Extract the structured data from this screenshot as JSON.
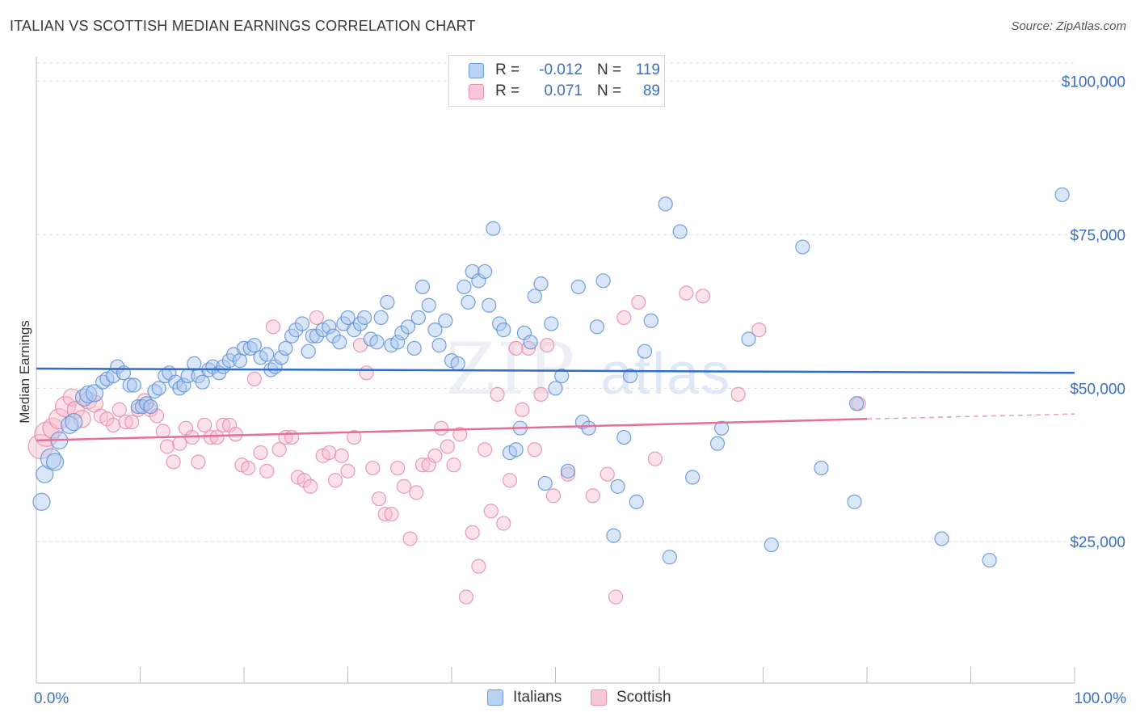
{
  "header": {
    "title": "ITALIAN VS SCOTTISH MEDIAN EARNINGS CORRELATION CHART",
    "source": "Source: ZipAtlas.com"
  },
  "legend_top": {
    "rows": [
      {
        "r_label": "R =",
        "r_value": "-0.012",
        "n_label": "N =",
        "n_value": "119"
      },
      {
        "r_label": "R =",
        "r_value": "0.071",
        "n_label": "N =",
        "n_value": "89"
      }
    ]
  },
  "legend_bottom": {
    "items": [
      "Italians",
      "Scottish"
    ]
  },
  "watermark": {
    "left": "ZIP",
    "right": "atlas"
  },
  "colors": {
    "italians_fill": "#aac8f0",
    "italians_stroke": "#5d8fd6",
    "italians_line": "#2e6dcc",
    "scottish_fill": "#f6bccd",
    "scottish_stroke": "#e88aa8",
    "scottish_line": "#e46f98",
    "tick_label": "#3b6fc4",
    "grid": "#dcdcdc"
  },
  "chart_data": {
    "type": "scatter",
    "title": "ITALIAN VS SCOTTISH MEDIAN EARNINGS CORRELATION CHART",
    "xlabel": "",
    "ylabel": "Median Earnings",
    "xlim": [
      0,
      100
    ],
    "ylim": [
      2000,
      104000
    ],
    "x_tick_labels": [
      "0.0%",
      "100.0%"
    ],
    "y_ticks": [
      25000,
      50000,
      75000,
      100000
    ],
    "y_tick_labels": [
      "$25,000",
      "$50,000",
      "$75,000",
      "$100,000"
    ],
    "grid": true,
    "legend": "top-center",
    "series": [
      {
        "name": "Italians",
        "r": -0.012,
        "n": 119,
        "trend": {
          "x": [
            0,
            100
          ],
          "y": [
            53200,
            52500
          ]
        },
        "points": [
          [
            0.5,
            31500,
            2
          ],
          [
            0.8,
            36000,
            2
          ],
          [
            1.4,
            38500,
            3
          ],
          [
            1.8,
            38000,
            2
          ],
          [
            2.2,
            41500,
            2
          ],
          [
            3.2,
            44000,
            2
          ],
          [
            3.6,
            44500,
            2
          ],
          [
            4.6,
            48500,
            2
          ],
          [
            5.0,
            49000,
            2
          ],
          [
            5.6,
            49200,
            2
          ],
          [
            6.4,
            51000,
            1
          ],
          [
            6.8,
            51500,
            1
          ],
          [
            7.4,
            52000,
            1
          ],
          [
            7.8,
            53500,
            1
          ],
          [
            8.4,
            52500,
            1
          ],
          [
            9.0,
            50500,
            1
          ],
          [
            9.4,
            50500,
            1
          ],
          [
            9.8,
            47000,
            1
          ],
          [
            10.2,
            47000,
            1
          ],
          [
            10.6,
            47500,
            1
          ],
          [
            11.0,
            47000,
            1
          ],
          [
            11.4,
            49500,
            1
          ],
          [
            11.8,
            50000,
            1
          ],
          [
            12.4,
            52000,
            1
          ],
          [
            12.8,
            52500,
            1
          ],
          [
            13.4,
            51000,
            1
          ],
          [
            13.8,
            50000,
            1
          ],
          [
            14.2,
            50500,
            1
          ],
          [
            14.6,
            52000,
            1
          ],
          [
            15.2,
            54000,
            1
          ],
          [
            15.6,
            52000,
            1
          ],
          [
            16.0,
            51000,
            1
          ],
          [
            16.6,
            53000,
            1
          ],
          [
            17.0,
            53500,
            1
          ],
          [
            17.6,
            52500,
            1
          ],
          [
            18.0,
            53500,
            1
          ],
          [
            18.6,
            54500,
            1
          ],
          [
            19.0,
            55500,
            1
          ],
          [
            19.6,
            54500,
            1
          ],
          [
            20.0,
            56500,
            1
          ],
          [
            20.6,
            56500,
            1
          ],
          [
            21.0,
            57000,
            1
          ],
          [
            21.6,
            55000,
            1
          ],
          [
            22.2,
            55500,
            1
          ],
          [
            22.6,
            53000,
            1
          ],
          [
            23.0,
            53500,
            1
          ],
          [
            23.6,
            55000,
            1
          ],
          [
            24.0,
            56500,
            1
          ],
          [
            24.6,
            58500,
            1
          ],
          [
            25.0,
            59500,
            1
          ],
          [
            25.6,
            60500,
            1
          ],
          [
            26.2,
            56000,
            1
          ],
          [
            26.6,
            58500,
            1
          ],
          [
            27.0,
            58500,
            1
          ],
          [
            27.6,
            59500,
            1
          ],
          [
            28.2,
            60000,
            1
          ],
          [
            28.6,
            58500,
            1
          ],
          [
            29.2,
            57500,
            1
          ],
          [
            29.6,
            60500,
            1
          ],
          [
            30.0,
            61500,
            1
          ],
          [
            30.6,
            59500,
            1
          ],
          [
            31.2,
            60500,
            1
          ],
          [
            31.6,
            61500,
            1
          ],
          [
            32.2,
            58000,
            1
          ],
          [
            32.8,
            57500,
            1
          ],
          [
            33.2,
            61500,
            1
          ],
          [
            33.8,
            64000,
            1
          ],
          [
            34.2,
            57000,
            1
          ],
          [
            34.8,
            57500,
            1
          ],
          [
            35.2,
            59000,
            1
          ],
          [
            35.8,
            60000,
            1
          ],
          [
            36.4,
            56500,
            1
          ],
          [
            36.8,
            61500,
            1
          ],
          [
            37.2,
            66500,
            1
          ],
          [
            37.8,
            63500,
            1
          ],
          [
            38.4,
            59500,
            1
          ],
          [
            38.8,
            57000,
            1
          ],
          [
            39.4,
            61000,
            1
          ],
          [
            40.0,
            54500,
            1
          ],
          [
            40.6,
            54000,
            1
          ],
          [
            41.2,
            66500,
            1
          ],
          [
            41.6,
            64000,
            1
          ],
          [
            42.0,
            69000,
            1
          ],
          [
            42.6,
            67500,
            1
          ],
          [
            43.2,
            69000,
            1
          ],
          [
            43.6,
            63500,
            1
          ],
          [
            44.0,
            76000,
            1
          ],
          [
            44.6,
            60500,
            1
          ],
          [
            45.0,
            59500,
            1
          ],
          [
            45.6,
            39500,
            1
          ],
          [
            46.2,
            40000,
            1
          ],
          [
            46.6,
            43500,
            1
          ],
          [
            47.0,
            59000,
            1
          ],
          [
            47.6,
            57500,
            1
          ],
          [
            48.0,
            65000,
            1
          ],
          [
            48.6,
            67000,
            1
          ],
          [
            49.0,
            34500,
            1
          ],
          [
            49.6,
            60500,
            1
          ],
          [
            50.0,
            50000,
            1
          ],
          [
            50.6,
            52000,
            1
          ],
          [
            51.2,
            36500,
            1
          ],
          [
            52.2,
            66500,
            1
          ],
          [
            52.6,
            44500,
            1
          ],
          [
            53.2,
            43500,
            1
          ],
          [
            54.0,
            60000,
            1
          ],
          [
            54.6,
            67500,
            1
          ],
          [
            55.6,
            26000,
            1
          ],
          [
            56.0,
            34000,
            1
          ],
          [
            56.6,
            42000,
            1
          ],
          [
            57.2,
            52000,
            1
          ],
          [
            57.8,
            31500,
            1
          ],
          [
            58.6,
            56000,
            1
          ],
          [
            59.2,
            61000,
            1
          ],
          [
            60.6,
            80000,
            1
          ],
          [
            61.0,
            22500,
            1
          ],
          [
            62.0,
            75500,
            1
          ],
          [
            63.2,
            35500,
            1
          ],
          [
            65.6,
            41000,
            1
          ],
          [
            66.0,
            43500,
            1
          ],
          [
            68.6,
            58000,
            1
          ],
          [
            70.8,
            24500,
            1
          ],
          [
            73.8,
            73000,
            1
          ],
          [
            75.6,
            37000,
            1
          ],
          [
            78.8,
            31500,
            1
          ],
          [
            79.0,
            47500,
            1
          ],
          [
            87.2,
            25500,
            1
          ],
          [
            91.8,
            22000,
            1
          ],
          [
            98.8,
            81500,
            1
          ]
        ]
      },
      {
        "name": "Scottish",
        "r": 0.071,
        "n": 89,
        "trend": {
          "x": [
            0,
            80
          ],
          "y": [
            41500,
            45000
          ],
          "dashed_extension_to": [
            100,
            45800
          ]
        },
        "points": [
          [
            0.4,
            40500,
            4
          ],
          [
            1.0,
            42500,
            4
          ],
          [
            1.6,
            43500,
            3
          ],
          [
            2.2,
            45000,
            3
          ],
          [
            2.8,
            47000,
            3
          ],
          [
            3.4,
            48500,
            2
          ],
          [
            3.8,
            46500,
            2
          ],
          [
            4.4,
            45000,
            2
          ],
          [
            5.0,
            48000,
            2
          ],
          [
            5.6,
            47500,
            2
          ],
          [
            6.2,
            45500,
            1
          ],
          [
            6.8,
            45000,
            1
          ],
          [
            7.4,
            44000,
            1
          ],
          [
            8.0,
            46500,
            1
          ],
          [
            8.6,
            44500,
            1
          ],
          [
            9.2,
            44500,
            1
          ],
          [
            9.8,
            46500,
            1
          ],
          [
            10.4,
            48000,
            1
          ],
          [
            11.0,
            46500,
            1
          ],
          [
            11.6,
            45500,
            1
          ],
          [
            12.2,
            43000,
            1
          ],
          [
            12.6,
            40500,
            1
          ],
          [
            13.2,
            38000,
            1
          ],
          [
            13.8,
            41000,
            1
          ],
          [
            14.4,
            43500,
            1
          ],
          [
            15.0,
            42000,
            1
          ],
          [
            15.6,
            38000,
            1
          ],
          [
            16.2,
            44000,
            1
          ],
          [
            16.8,
            42000,
            1
          ],
          [
            17.4,
            42000,
            1
          ],
          [
            18.0,
            44000,
            1
          ],
          [
            18.6,
            44000,
            1
          ],
          [
            19.2,
            42500,
            1
          ],
          [
            19.8,
            37500,
            1
          ],
          [
            20.4,
            37000,
            1
          ],
          [
            21.0,
            51500,
            1
          ],
          [
            21.6,
            39500,
            1
          ],
          [
            22.2,
            36500,
            1
          ],
          [
            22.8,
            60000,
            1
          ],
          [
            23.4,
            40000,
            1
          ],
          [
            24.0,
            42000,
            1
          ],
          [
            24.6,
            42000,
            1
          ],
          [
            25.2,
            35500,
            1
          ],
          [
            25.8,
            35000,
            1
          ],
          [
            26.4,
            34000,
            1
          ],
          [
            27.0,
            61500,
            1
          ],
          [
            27.6,
            39000,
            1
          ],
          [
            28.2,
            39500,
            1
          ],
          [
            28.8,
            35000,
            1
          ],
          [
            29.4,
            39000,
            1
          ],
          [
            30.0,
            36500,
            1
          ],
          [
            30.6,
            42000,
            1
          ],
          [
            31.2,
            57000,
            1
          ],
          [
            31.8,
            52500,
            1
          ],
          [
            32.4,
            37000,
            1
          ],
          [
            33.0,
            32000,
            1
          ],
          [
            33.6,
            29500,
            1
          ],
          [
            34.2,
            29500,
            1
          ],
          [
            34.8,
            37000,
            1
          ],
          [
            35.4,
            34000,
            1
          ],
          [
            36.0,
            25500,
            1
          ],
          [
            36.6,
            33000,
            1
          ],
          [
            37.2,
            37500,
            1
          ],
          [
            37.8,
            37500,
            1
          ],
          [
            38.4,
            39000,
            1
          ],
          [
            39.0,
            43500,
            1
          ],
          [
            39.6,
            40500,
            1
          ],
          [
            40.2,
            37500,
            1
          ],
          [
            40.8,
            42500,
            1
          ],
          [
            41.4,
            16000,
            1
          ],
          [
            42.0,
            26500,
            1
          ],
          [
            42.6,
            21000,
            1
          ],
          [
            43.2,
            40000,
            1
          ],
          [
            43.8,
            30000,
            1
          ],
          [
            44.4,
            49000,
            1
          ],
          [
            45.0,
            28000,
            1
          ],
          [
            45.6,
            35000,
            1
          ],
          [
            46.2,
            56500,
            1
          ],
          [
            46.8,
            46500,
            1
          ],
          [
            47.4,
            56500,
            1
          ],
          [
            48.0,
            40000,
            1
          ],
          [
            48.6,
            49000,
            1
          ],
          [
            49.2,
            57000,
            1
          ],
          [
            49.8,
            32500,
            1
          ],
          [
            51.2,
            36000,
            1
          ],
          [
            53.6,
            32500,
            1
          ],
          [
            55.0,
            36000,
            1
          ],
          [
            55.8,
            16000,
            1
          ],
          [
            56.6,
            61500,
            1
          ],
          [
            58.0,
            64000,
            1
          ],
          [
            59.6,
            38500,
            1
          ],
          [
            62.6,
            65500,
            1
          ],
          [
            64.2,
            65000,
            1
          ],
          [
            67.6,
            49000,
            1
          ],
          [
            69.6,
            59500,
            1
          ],
          [
            79.2,
            47500,
            1
          ]
        ]
      }
    ]
  }
}
